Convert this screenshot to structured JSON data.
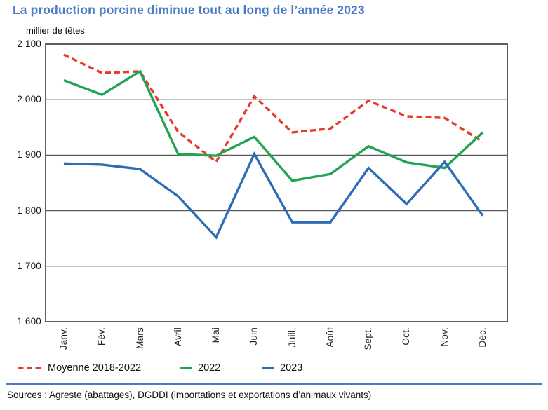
{
  "title": "La production porcine diminue tout au long de l’année 2023",
  "source_note": "Sources : Agreste (abattages), DGDDI (importations et exportations d’animaux vivants)",
  "colors": {
    "title": "#4d7cc5",
    "separator": "#4d7cc5",
    "axis": "#4f4f4f",
    "grid": "#5a5a5a",
    "red_series": "#e8392b",
    "green_series": "#23a453",
    "blue_series": "#2e6db4"
  },
  "chart_data": {
    "type": "line",
    "title": "La production porcine diminue tout au long de l’année 2023",
    "ylabel": "millier de têtes",
    "xlabel": "",
    "categories": [
      "Janv.",
      "Fév.",
      "Mars",
      "Avril",
      "Mai",
      "Juin",
      "Juill.",
      "Août",
      "Sept.",
      "Oct.",
      "Nov.",
      "Déc."
    ],
    "series": [
      {
        "name": "Moyenne 2018-2022",
        "color": "#e8392b",
        "style": "dashed",
        "values": [
          2081,
          2048,
          2051,
          1942,
          1888,
          2006,
          1941,
          1948,
          1998,
          1970,
          1967,
          1924
        ]
      },
      {
        "name": "2022",
        "color": "#23a453",
        "style": "solid",
        "values": [
          2035,
          2009,
          2051,
          1902,
          1899,
          1933,
          1854,
          1866,
          1916,
          1887,
          1877,
          1941
        ]
      },
      {
        "name": "2023",
        "color": "#2e6db4",
        "style": "solid",
        "values": [
          1885,
          1883,
          1875,
          1826,
          1752,
          1902,
          1779,
          1779,
          1877,
          1812,
          1888,
          1791
        ]
      }
    ],
    "ylim": [
      1600,
      2100
    ],
    "y_ticks": [
      "2 100",
      "2 000",
      "1 900",
      "1 800",
      "1 700",
      "1 600"
    ],
    "y_tick_values": [
      2100,
      2000,
      1900,
      1800,
      1700,
      1600
    ],
    "grid": true,
    "legend_position": "bottom"
  }
}
